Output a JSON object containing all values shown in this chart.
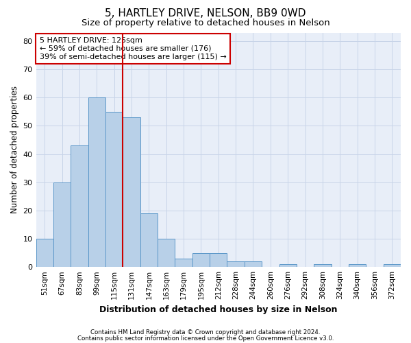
{
  "title": "5, HARTLEY DRIVE, NELSON, BB9 0WD",
  "subtitle": "Size of property relative to detached houses in Nelson",
  "xlabel": "Distribution of detached houses by size in Nelson",
  "ylabel": "Number of detached properties",
  "categories": [
    "51sqm",
    "67sqm",
    "83sqm",
    "99sqm",
    "115sqm",
    "131sqm",
    "147sqm",
    "163sqm",
    "179sqm",
    "195sqm",
    "212sqm",
    "228sqm",
    "244sqm",
    "260sqm",
    "276sqm",
    "292sqm",
    "308sqm",
    "324sqm",
    "340sqm",
    "356sqm",
    "372sqm"
  ],
  "values": [
    10,
    30,
    43,
    60,
    55,
    53,
    19,
    10,
    3,
    5,
    5,
    2,
    2,
    0,
    1,
    0,
    1,
    0,
    1,
    0,
    1
  ],
  "bar_color": "#b8d0e8",
  "bar_edge_color": "#5a96c8",
  "vline_color": "#cc0000",
  "annotation_text": "5 HARTLEY DRIVE: 125sqm\n← 59% of detached houses are smaller (176)\n39% of semi-detached houses are larger (115) →",
  "annotation_box_color": "#ffffff",
  "annotation_box_edge": "#cc0000",
  "ylim": [
    0,
    83
  ],
  "yticks": [
    0,
    10,
    20,
    30,
    40,
    50,
    60,
    70,
    80
  ],
  "grid_color": "#c8d4e8",
  "background_color": "#e8eef8",
  "footnote1": "Contains HM Land Registry data © Crown copyright and database right 2024.",
  "footnote2": "Contains public sector information licensed under the Open Government Licence v3.0.",
  "title_fontsize": 11,
  "subtitle_fontsize": 9.5,
  "xlabel_fontsize": 9,
  "ylabel_fontsize": 8.5,
  "annot_fontsize": 8,
  "tick_fontsize": 8,
  "xtick_fontsize": 7.5
}
